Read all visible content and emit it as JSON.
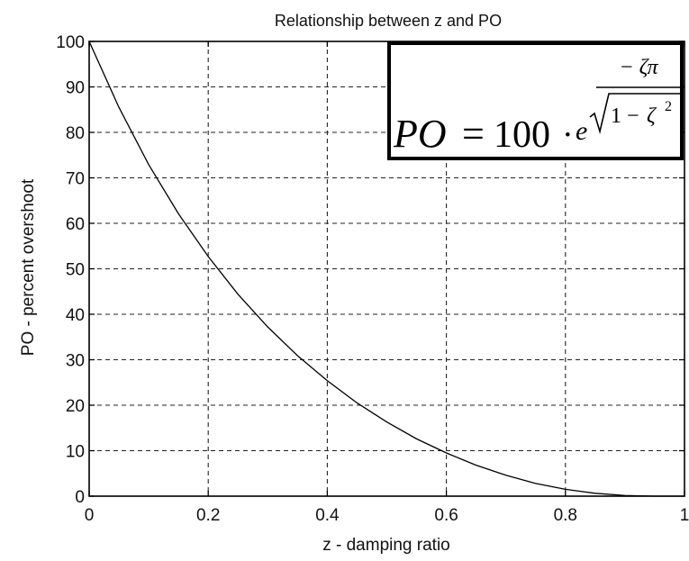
{
  "chart_data": {
    "type": "line",
    "title": "Relationship between z and PO",
    "xlabel": "z - damping ratio",
    "ylabel": "PO - percent overshoot",
    "xlim": [
      0,
      1
    ],
    "ylim": [
      0,
      100
    ],
    "grid": true,
    "x_ticks": [
      0,
      0.2,
      0.4,
      0.6,
      0.8,
      1
    ],
    "x_tick_labels": [
      "0",
      "0.2",
      "0.4",
      "0.6",
      "0.8",
      "1"
    ],
    "y_ticks": [
      0,
      10,
      20,
      30,
      40,
      50,
      60,
      70,
      80,
      90,
      100
    ],
    "y_tick_labels": [
      "0",
      "10",
      "20",
      "30",
      "40",
      "50",
      "60",
      "70",
      "80",
      "90",
      "100"
    ],
    "series": [
      {
        "x": [
          0,
          0.05,
          0.1,
          0.15,
          0.2,
          0.25,
          0.3,
          0.35,
          0.4,
          0.45,
          0.5,
          0.55,
          0.6,
          0.65,
          0.7,
          0.75,
          0.8,
          0.85,
          0.9,
          0.95,
          0.99
        ],
        "y": [
          100,
          85.5,
          72.9,
          62.1,
          52.7,
          44.4,
          37.2,
          30.9,
          25.4,
          20.5,
          16.3,
          12.6,
          9.5,
          6.8,
          4.6,
          2.8,
          1.5,
          0.63,
          0.15,
          0.005,
          0
        ]
      }
    ],
    "line_color": "#000000",
    "annotation": {
      "lhs": "PO",
      "equals": "=",
      "coefficient": "100",
      "dot": "·",
      "base": "e",
      "exp_numerator": "− ζπ",
      "exp_denominator_one": "1 −",
      "exp_denominator_zeta": "ζ",
      "exp_denominator_power": "2",
      "placement": "top-right"
    }
  }
}
